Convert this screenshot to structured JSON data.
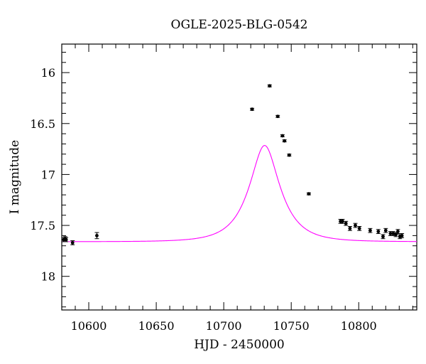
{
  "chart_data": {
    "type": "scatter",
    "title": "OGLE-2025-BLG-0542",
    "xlabel": "HJD - 2450000",
    "ylabel": "I magnitude",
    "xlim": [
      10580,
      10843
    ],
    "ylim": [
      18.33,
      15.72
    ],
    "y_inverted": true,
    "x_ticks": [
      10600,
      10650,
      10700,
      10750,
      10800
    ],
    "y_ticks": [
      16,
      16.5,
      17,
      17.5,
      18
    ],
    "x_tick_labels": [
      "10600",
      "10650",
      "10700",
      "10750",
      "10800"
    ],
    "y_tick_labels": [
      "16",
      "16.5",
      "17",
      "17.5",
      "18"
    ],
    "grid": false,
    "colors": {
      "model": "#ff00ff",
      "points": "#000000"
    },
    "model": {
      "t0": 10730.3,
      "tE": 20.5,
      "u0": 0.45,
      "baseline": 17.66
    },
    "series": [
      {
        "points": [
          {
            "x": 10581.5,
            "y": 17.64,
            "err": 0.02
          },
          {
            "x": 10582.5,
            "y": 17.63,
            "err": 0.02
          },
          {
            "x": 10583.2,
            "y": 17.64,
            "err": 0.02
          },
          {
            "x": 10588.0,
            "y": 17.67,
            "err": 0.02
          },
          {
            "x": 10606.0,
            "y": 17.6,
            "err": 0.03
          },
          {
            "x": 10721.0,
            "y": 16.36,
            "err": 0.01
          },
          {
            "x": 10734.0,
            "y": 16.13,
            "err": 0.01
          },
          {
            "x": 10740.0,
            "y": 16.43,
            "err": 0.01
          },
          {
            "x": 10743.5,
            "y": 16.62,
            "err": 0.01
          },
          {
            "x": 10745.0,
            "y": 16.67,
            "err": 0.01
          },
          {
            "x": 10748.5,
            "y": 16.81,
            "err": 0.01
          },
          {
            "x": 10763.0,
            "y": 17.19,
            "err": 0.01
          },
          {
            "x": 10786.5,
            "y": 17.46,
            "err": 0.02
          },
          {
            "x": 10788.0,
            "y": 17.46,
            "err": 0.02
          },
          {
            "x": 10790.5,
            "y": 17.48,
            "err": 0.02
          },
          {
            "x": 10793.5,
            "y": 17.53,
            "err": 0.02
          },
          {
            "x": 10797.5,
            "y": 17.5,
            "err": 0.02
          },
          {
            "x": 10800.5,
            "y": 17.53,
            "err": 0.02
          },
          {
            "x": 10808.5,
            "y": 17.55,
            "err": 0.02
          },
          {
            "x": 10814.5,
            "y": 17.56,
            "err": 0.02
          },
          {
            "x": 10818.0,
            "y": 17.61,
            "err": 0.02
          },
          {
            "x": 10820.0,
            "y": 17.55,
            "err": 0.02
          },
          {
            "x": 10823.5,
            "y": 17.58,
            "err": 0.02
          },
          {
            "x": 10825.5,
            "y": 17.58,
            "err": 0.02
          },
          {
            "x": 10827.5,
            "y": 17.59,
            "err": 0.02
          },
          {
            "x": 10829.0,
            "y": 17.56,
            "err": 0.02
          },
          {
            "x": 10830.5,
            "y": 17.61,
            "err": 0.02
          },
          {
            "x": 10832.0,
            "y": 17.6,
            "err": 0.02
          }
        ]
      }
    ]
  }
}
